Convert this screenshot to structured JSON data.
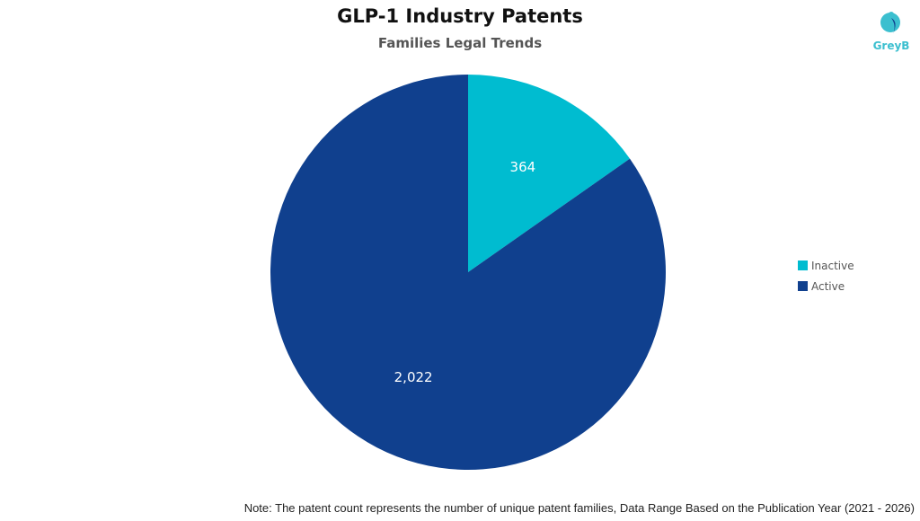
{
  "logo": {
    "text": "GreyB"
  },
  "note": "Note: The patent count represents the number of unique patent families, Data Range Based on the Publication Year (2021 - 2026)",
  "chart_data": {
    "type": "pie",
    "title": "GLP-1 Industry Patents",
    "subtitle": "Families Legal Trends",
    "categories": [
      "Inactive",
      "Active"
    ],
    "values": [
      364,
      2022
    ],
    "labels": [
      "364",
      "2,022"
    ],
    "colors": [
      "#00bcd0",
      "#10408e"
    ],
    "start_angle": "top, clockwise",
    "legend_position": "right"
  }
}
